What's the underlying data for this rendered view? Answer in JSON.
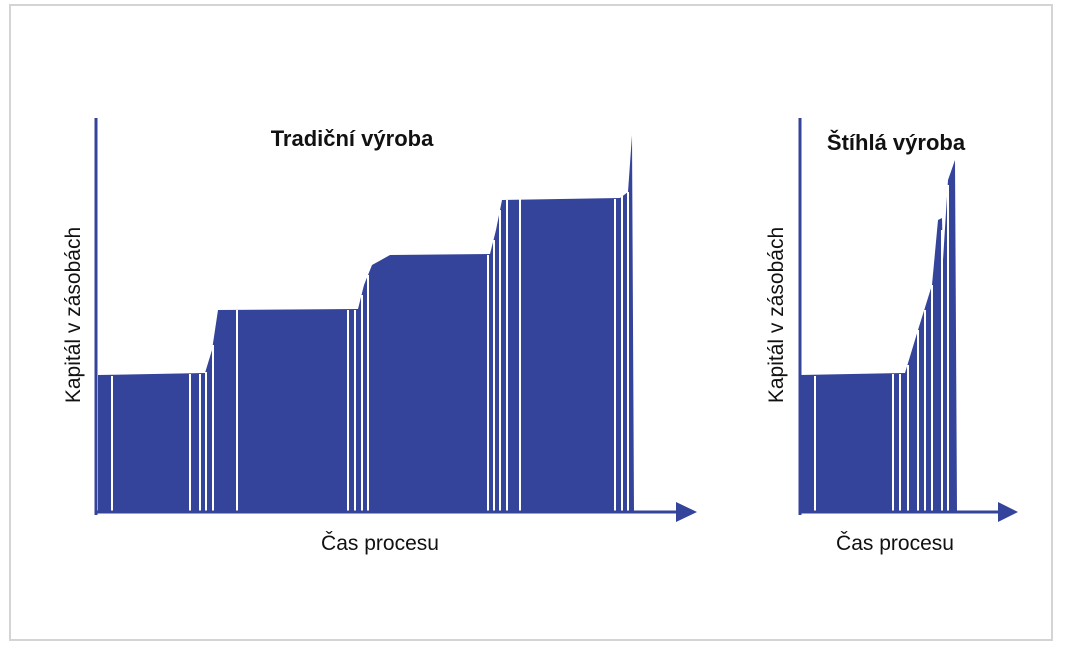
{
  "left_panel": {
    "title": "Tradiční výroba",
    "y_axis_label": "Kapitál v zásobách",
    "x_axis_label": "Čas procesu"
  },
  "right_panel": {
    "title": "Štíhlá výroba",
    "y_axis_label": "Kapitál v zásobách",
    "x_axis_label": "Čas procesu"
  }
}
